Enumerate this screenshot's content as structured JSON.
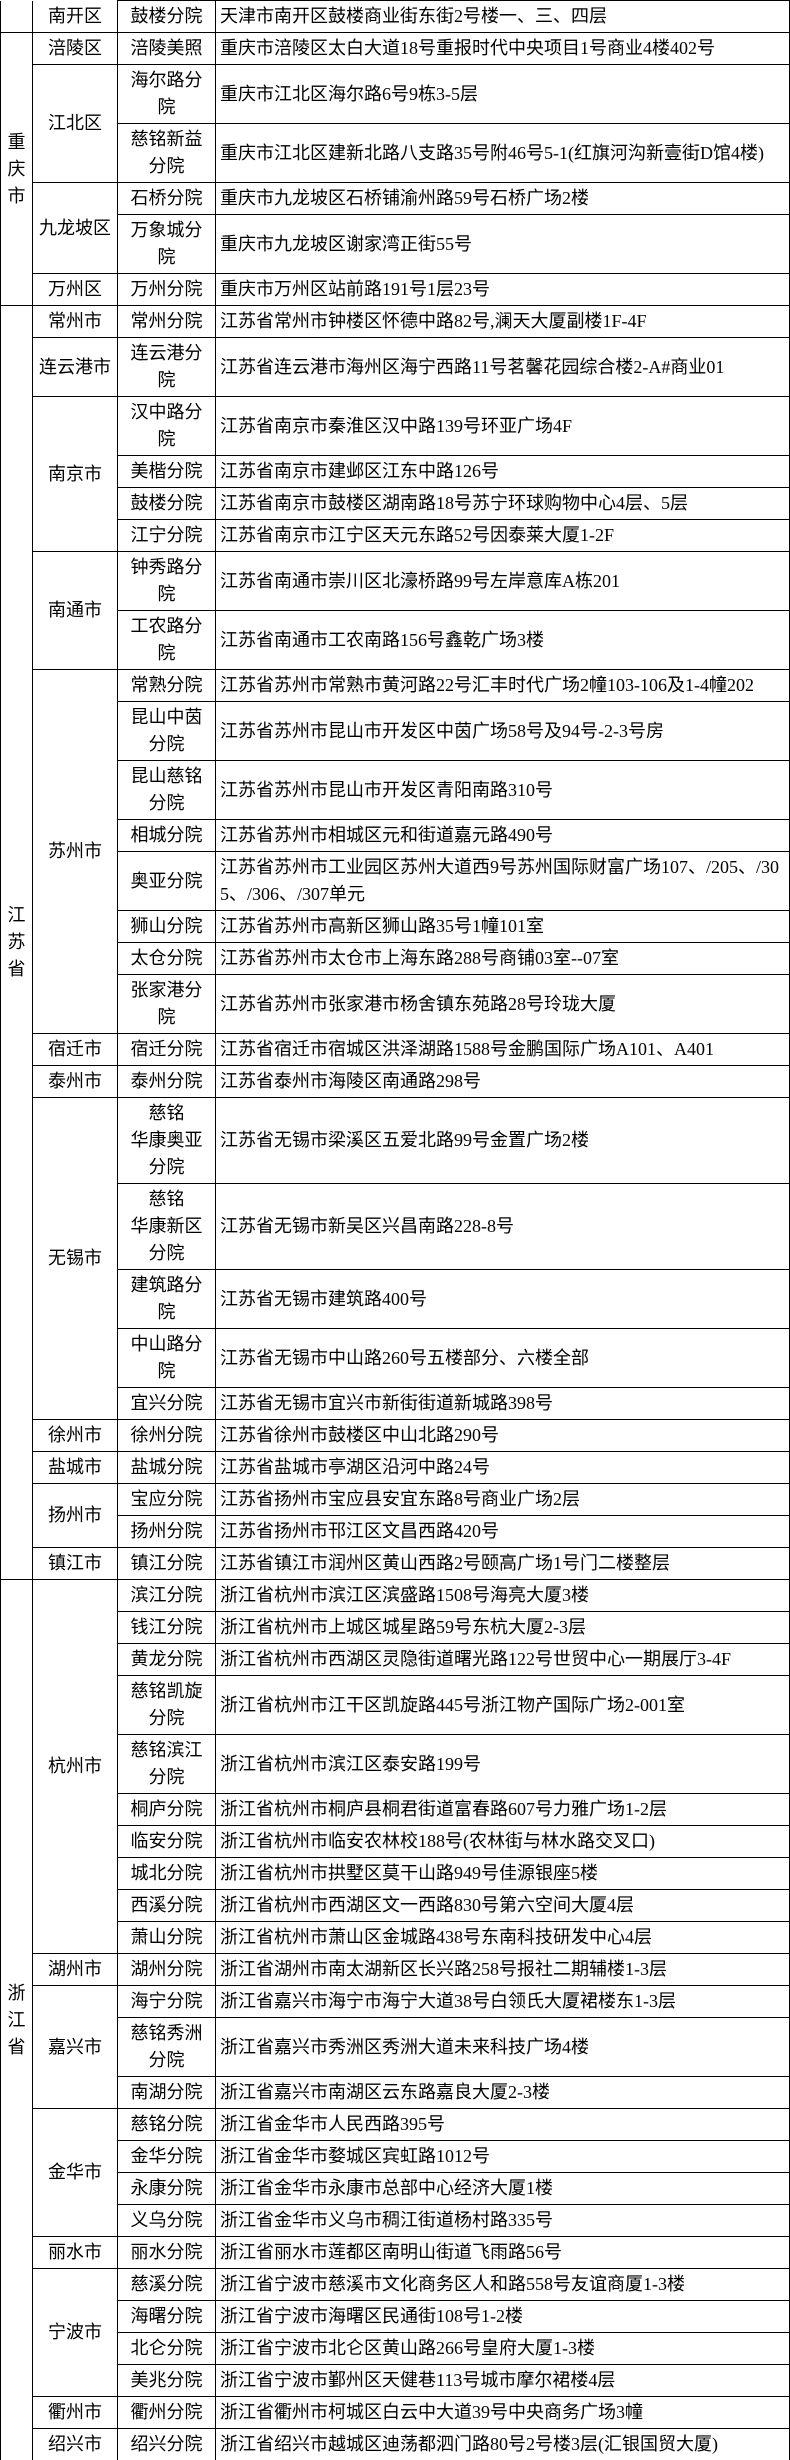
{
  "cells": {
    "r0_c1": "南开区",
    "r0_c2": "鼓楼分院",
    "r0_c3": "天津市南开区鼓楼商业街东街2号楼一、三、四层",
    "r1_c0": "重庆市",
    "r1_c1": "涪陵区",
    "r1_c2": "涪陵美照",
    "r1_c3": "重庆市涪陵区太白大道18号重报时代中央项目1号商业4楼402号",
    "r2_c1": "江北区",
    "r2_c2": "海尔路分院",
    "r2_c3": "重庆市江北区海尔路6号9栋3-5层",
    "r3_c2": "慈铭新益分院",
    "r3_c3": "重庆市江北区建新北路八支路35号附46号5-1(红旗河沟新壹街D馆4楼)",
    "r4_c1": "九龙坡区",
    "r4_c2": "石桥分院",
    "r4_c3": "重庆市九龙坡区石桥铺渝州路59号石桥广场2楼",
    "r5_c2": "万象城分院",
    "r5_c3": "重庆市九龙坡区谢家湾正街55号",
    "r6_c1": "万州区",
    "r6_c2": "万州分院",
    "r6_c3": "重庆市万州区站前路191号1层23号",
    "r7_c0": "江苏省",
    "r7_c1": "常州市",
    "r7_c2": "常州分院",
    "r7_c3": "江苏省常州市钟楼区怀德中路82号,澜天大厦副楼1F-4F",
    "r8_c1": "连云港市",
    "r8_c2": "连云港分院",
    "r8_c3": "江苏省连云港市海州区海宁西路11号茗馨花园综合楼2-A#商业01",
    "r9_c1": "南京市",
    "r9_c2": "汉中路分院",
    "r9_c3": "江苏省南京市秦淮区汉中路139号环亚广场4F",
    "r10_c2": "美楷分院",
    "r10_c3": "江苏省南京市建邺区江东中路126号",
    "r11_c2": "鼓楼分院",
    "r11_c3": "江苏省南京市鼓楼区湖南路18号苏宁环球购物中心4层、5层",
    "r12_c2": "江宁分院",
    "r12_c3": "江苏省南京市江宁区天元东路52号因泰莱大厦1-2F",
    "r13_c1": "南通市",
    "r13_c2": "钟秀路分院",
    "r13_c3": "江苏省南通市崇川区北濠桥路99号左岸意库A栋201",
    "r14_c2": "工农路分院",
    "r14_c3": "江苏省南通市工农南路156号鑫乾广场3楼",
    "r15_c1": "苏州市",
    "r15_c2": "常熟分院",
    "r15_c3": "江苏省苏州市常熟市黄河路22号汇丰时代广场2幢103-106及1-4幢202",
    "r16_c2": "昆山中茵分院",
    "r16_c3": "江苏省苏州市昆山市开发区中茵广场58号及94号-2-3号房",
    "r17_c2": "昆山慈铭分院",
    "r17_c3": "江苏省苏州市昆山市开发区青阳南路310号",
    "r18_c2": "相城分院",
    "r18_c3": "江苏省苏州市相城区元和街道嘉元路490号",
    "r19_c2": "奥亚分院",
    "r19_c3": "江苏省苏州市工业园区苏州大道西9号苏州国际财富广场107、/205、/305、/306、/307单元",
    "r20_c2": "狮山分院",
    "r20_c3": "江苏省苏州市高新区狮山路35号1幢101室",
    "r21_c2": "太仓分院",
    "r21_c3": "江苏省苏州市太仓市上海东路288号商铺03室--07室",
    "r22_c2": "张家港分院",
    "r22_c3": "江苏省苏州市张家港市杨舍镇东苑路28号玲珑大厦",
    "r23_c1": "宿迁市",
    "r23_c2": "宿迁分院",
    "r23_c3": "江苏省宿迁市宿城区洪泽湖路1588号金鹏国际广场A101、A401",
    "r24_c1": "泰州市",
    "r24_c2": "泰州分院",
    "r24_c3": "江苏省泰州市海陵区南通路298号",
    "r25_c1": "无锡市",
    "r25_c2": "慈铭\n华康奥亚分院",
    "r25_c3": "江苏省无锡市梁溪区五爱北路99号金置广场2楼",
    "r26_c2": "慈铭\n华康新区分院",
    "r26_c3": "江苏省无锡市新吴区兴昌南路228-8号",
    "r27_c2": "建筑路分院",
    "r27_c3": "江苏省无锡市建筑路400号",
    "r28_c2": "中山路分院",
    "r28_c3": "江苏省无锡市中山路260号五楼部分、六楼全部",
    "r29_c2": "宜兴分院",
    "r29_c3": "江苏省无锡市宜兴市新街街道新城路398号",
    "r30_c1": "徐州市",
    "r30_c2": "徐州分院",
    "r30_c3": "江苏省徐州市鼓楼区中山北路290号",
    "r31_c1": "盐城市",
    "r31_c2": "盐城分院",
    "r31_c3": "江苏省盐城市亭湖区沿河中路24号",
    "r32_c1": "扬州市",
    "r32_c2": "宝应分院",
    "r32_c3": "江苏省扬州市宝应县安宜东路8号商业广场2层",
    "r33_c2": "扬州分院",
    "r33_c3": "江苏省扬州市邗江区文昌西路420号",
    "r34_c1": "镇江市",
    "r34_c2": "镇江分院",
    "r34_c3": "江苏省镇江市润州区黄山西路2号颐高广场1号门二楼整层",
    "r35_c0": "浙江省",
    "r35_c1": "杭州市",
    "r35_c2": "滨江分院",
    "r35_c3": "浙江省杭州市滨江区滨盛路1508号海亮大厦3楼",
    "r36_c2": "钱江分院",
    "r36_c3": "浙江省杭州市上城区城星路59号东杭大厦2-3层",
    "r37_c2": "黄龙分院",
    "r37_c3": "浙江省杭州市西湖区灵隐街道曙光路122号世贸中心一期展厅3-4F",
    "r38_c2": "慈铭凯旋分院",
    "r38_c3": "浙江省杭州市江干区凯旋路445号浙江物产国际广场2-001室",
    "r39_c2": "慈铭滨江分院",
    "r39_c3": "浙江省杭州市滨江区泰安路199号",
    "r40_c2": "桐庐分院",
    "r40_c3": "浙江省杭州市桐庐县桐君街道富春路607号力雅广场1-2层",
    "r41_c2": "临安分院",
    "r41_c3": "浙江省杭州市临安农林校188号(农林街与林水路交叉口)",
    "r42_c2": "城北分院",
    "r42_c3": "浙江省杭州市拱墅区莫干山路949号佳源银座5楼",
    "r43_c2": "西溪分院",
    "r43_c3": "浙江省杭州市西湖区文一西路830号第六空间大厦4层",
    "r44_c2": "萧山分院",
    "r44_c3": "浙江省杭州市萧山区金城路438号东南科技研发中心4层",
    "r45_c1": "湖州市",
    "r45_c2": "湖州分院",
    "r45_c3": "浙江省湖州市南太湖新区长兴路258号报社二期辅楼1-3层",
    "r46_c1": "嘉兴市",
    "r46_c2": "海宁分院",
    "r46_c3": "浙江省嘉兴市海宁市海宁大道38号白领氏大厦裙楼东1-3层",
    "r47_c2": "慈铭秀洲分院",
    "r47_c3": "浙江省嘉兴市秀洲区秀洲大道未来科技广场4楼",
    "r48_c2": "南湖分院",
    "r48_c3": "浙江省嘉兴市南湖区云东路嘉良大厦2-3楼",
    "r49_c1": "金华市",
    "r49_c2": "慈铭分院",
    "r49_c3": "浙江省金华市人民西路395号",
    "r50_c2": "金华分院",
    "r50_c3": "浙江省金华市婺城区宾虹路1012号",
    "r51_c2": "永康分院",
    "r51_c3": "浙江省金华市永康市总部中心经济大厦1楼",
    "r52_c2": "义乌分院",
    "r52_c3": "浙江省金华市义乌市稠江街道杨村路335号",
    "r53_c1": "丽水市",
    "r53_c2": "丽水分院",
    "r53_c3": "浙江省丽水市莲都区南明山街道飞雨路56号",
    "r54_c1": "宁波市",
    "r54_c2": "慈溪分院",
    "r54_c3": "浙江省宁波市慈溪市文化商务区人和路558号友谊商厦1-3楼",
    "r55_c2": "海曙分院",
    "r55_c3": "浙江省宁波市海曙区民通街108号1-2楼",
    "r56_c2": "北仑分院",
    "r56_c3": "浙江省宁波市北仑区黄山路266号皇府大厦1-3楼",
    "r57_c2": "美兆分院",
    "r57_c3": "浙江省宁波市鄞州区天健巷113号城市摩尔裙楼4层",
    "r58_c1": "衢州市",
    "r58_c2": "衢州分院",
    "r58_c3": "浙江省衢州市柯城区白云中大道39号中央商务广场3幢",
    "r59_c1": "绍兴市",
    "r59_c2": "绍兴分院",
    "r59_c3": "浙江省绍兴市越城区迪荡都泗门路80号2号楼3层(汇银国贸大厦)"
  }
}
